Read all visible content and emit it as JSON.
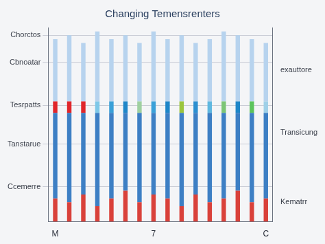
{
  "chart_data": {
    "type": "bar",
    "title": "Changing Temensrenters",
    "categories": [
      "M",
      null,
      null,
      null,
      null,
      null,
      null,
      "7",
      null,
      null,
      null,
      null,
      null,
      null,
      null,
      "C"
    ],
    "stacked": true,
    "grid": true,
    "ylim": [
      0,
      5
    ],
    "yticks": [
      {
        "value": 0.9,
        "label": "Ccemerre"
      },
      {
        "value": 2.0,
        "label": "Tanstarue"
      },
      {
        "value": 3.0,
        "label": "Tesrpatts"
      },
      {
        "value": 4.1,
        "label": "Cbnoatar"
      },
      {
        "value": 4.8,
        "label": "Chorctos"
      }
    ],
    "y2lim": [
      0,
      5
    ],
    "y2ticks": [
      {
        "value": 0.5,
        "label": "Kematrr"
      },
      {
        "value": 2.3,
        "label": "Transicung"
      },
      {
        "value": 3.9,
        "label": "exauttore"
      }
    ],
    "series": [
      {
        "color": "#d9413a",
        "values": [
          0.6,
          0.5,
          0.7,
          0.4,
          0.6,
          0.8,
          0.5,
          0.7,
          0.6,
          0.4,
          0.7,
          0.5,
          0.6,
          0.8,
          0.5,
          0.6
        ]
      },
      {
        "color": "#3d7fc4",
        "values": [
          2.2,
          2.3,
          2.1,
          2.4,
          2.2,
          2.0,
          2.3,
          2.1,
          2.2,
          2.4,
          2.1,
          2.3,
          2.2,
          2.0,
          2.3,
          2.2
        ]
      },
      {
        "colors": [
          "#e0262a",
          "#e0262a",
          "#e0262a",
          "#7ec8e8",
          "#3aa0d8",
          "#1f86c8",
          "#9fd0a0",
          "#3aa0d8",
          "#1f86c8",
          "#9bc53d",
          "#2c8fd0",
          "#5fb8e0",
          "#7cc576",
          "#1f86c8",
          "#5cc45c",
          "#9fd0e8"
        ],
        "values": [
          0.3,
          0.3,
          0.3,
          0.3,
          0.3,
          0.3,
          0.3,
          0.3,
          0.3,
          0.3,
          0.3,
          0.3,
          0.3,
          0.3,
          0.3,
          0.3
        ]
      },
      {
        "color": "#b7d3ee",
        "values": [
          1.6,
          1.7,
          1.5,
          1.8,
          1.6,
          1.7,
          1.5,
          1.8,
          1.6,
          1.7,
          1.5,
          1.6,
          1.8,
          1.7,
          1.6,
          1.5
        ]
      }
    ]
  }
}
